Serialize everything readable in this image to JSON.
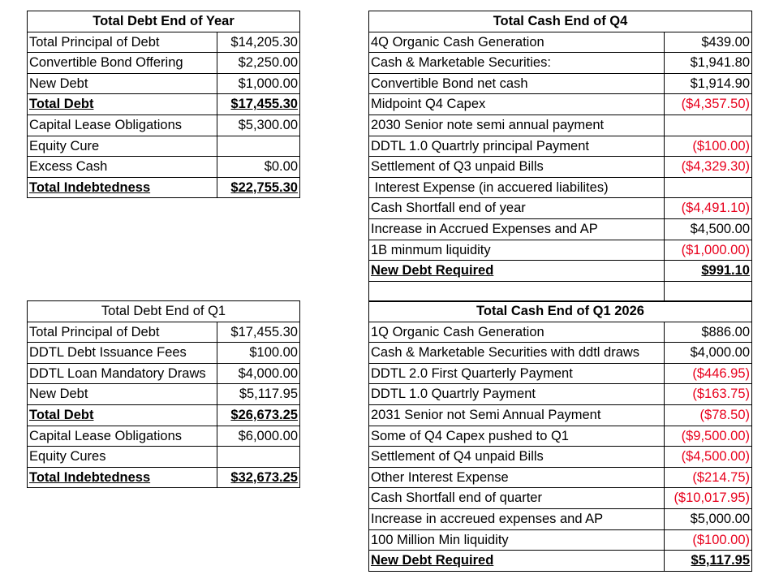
{
  "debt_end_of_year": {
    "title": "Total Debt End of Year",
    "rows": [
      {
        "label": "Total Principal of Debt",
        "value": "$14,205.30"
      },
      {
        "label": "Convertible Bond Offering",
        "value": "$2,250.00"
      },
      {
        "label": "New Debt",
        "value": "$1,000.00"
      },
      {
        "label": "Total Debt",
        "value": "$17,455.30"
      },
      {
        "label": "Capital Lease Obligations",
        "value": "$5,300.00"
      },
      {
        "label": "Equity Cure",
        "value": ""
      },
      {
        "label": "Excess Cash",
        "value": "$0.00"
      },
      {
        "label": "Total Indebtedness",
        "value": "$22,755.30"
      }
    ]
  },
  "debt_end_of_q1": {
    "title": "Total Debt End of Q1",
    "rows": [
      {
        "label": "Total Principal of Debt",
        "value": "$17,455.30"
      },
      {
        "label": "DDTL Debt Issuance Fees",
        "value": "$100.00"
      },
      {
        "label": "DDTL Loan Mandatory Draws",
        "value": "$4,000.00"
      },
      {
        "label": "New Debt",
        "value": "$5,117.95"
      },
      {
        "label": "Total Debt",
        "value": "$26,673.25"
      },
      {
        "label": "Capital Lease Obligations",
        "value": "$6,000.00"
      },
      {
        "label": "Equity Cures",
        "value": ""
      },
      {
        "label": "Total Indebtedness",
        "value": "$32,673.25"
      }
    ]
  },
  "cash_end_of_q4": {
    "title": "Total Cash End of Q4",
    "rows": [
      {
        "label": "4Q Organic Cash Generation",
        "value": "$439.00"
      },
      {
        "label": "Cash & Marketable Securities:",
        "value": "$1,941.80"
      },
      {
        "label": "Convertible Bond net cash",
        "value": "$1,914.90"
      },
      {
        "label": "Midpoint Q4 Capex",
        "value": "($4,357.50)"
      },
      {
        "label": "2030 Senior note semi annual payment",
        "value": ""
      },
      {
        "label": "DDTL 1.0 Quartrly principal Payment",
        "value": "($100.00)"
      },
      {
        "label": "Settlement of Q3 unpaid Bills",
        "value": "($4,329.30)"
      },
      {
        "label": " Interest Expense (in accuered liabilites)",
        "value": ""
      },
      {
        "label": "Cash Shortfall end of year",
        "value": "($4,491.10)"
      },
      {
        "label": "Increase in Accrued Expenses and AP",
        "value": "$4,500.00"
      },
      {
        "label": "1B minmum liquidity",
        "value": "($1,000.00)"
      },
      {
        "label": "New Debt Required",
        "value": "$991.10"
      },
      {
        "label": "",
        "value": ""
      }
    ]
  },
  "cash_end_of_q1_2026": {
    "title": "Total Cash End of Q1 2026",
    "rows": [
      {
        "label": "1Q Organic Cash Generation",
        "value": "$886.00"
      },
      {
        "label": "Cash & Marketable Securities with ddtl draws",
        "value": "$4,000.00"
      },
      {
        "label": "DDTL 2.0 First Quarterly Payment",
        "value": "($446.95)"
      },
      {
        "label": "DDTL 1.0 Quartrly Payment",
        "value": "($163.75)"
      },
      {
        "label": "2031 Senior not Semi Annual Payment",
        "value": "($78.50)"
      },
      {
        "label": "Some of Q4 Capex pushed to Q1",
        "value": "($9,500.00)"
      },
      {
        "label": "Settlement of Q4 unpaid Bills",
        "value": "($4,500.00)"
      },
      {
        "label": "Other Interest Expense",
        "value": "($214.75)"
      },
      {
        "label": "Cash Shortfall end of quarter",
        "value": "($10,017.95)"
      },
      {
        "label": "Increase in accreued expenses and AP",
        "value": "$5,000.00"
      },
      {
        "label": "100 Million Min liquidity",
        "value": "($100.00)"
      },
      {
        "label": "New Debt Required",
        "value": "$5,117.95"
      }
    ]
  },
  "colors": {
    "negative": "#e8001c",
    "border": "#000000",
    "text": "#000000"
  }
}
